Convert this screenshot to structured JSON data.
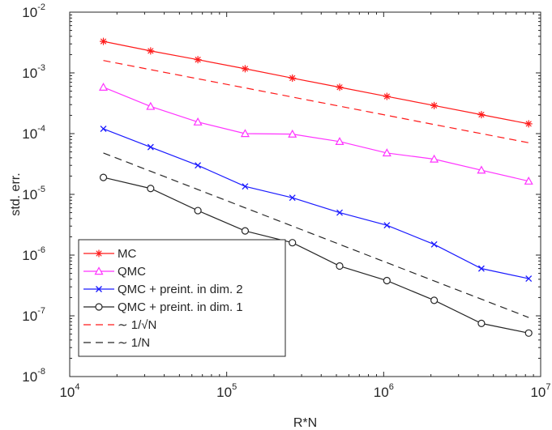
{
  "chart_data": {
    "type": "line",
    "xscale": "log",
    "yscale": "log",
    "xlabel": "R*N",
    "ylabel": "std. err.",
    "xlim": [
      10000,
      10000000
    ],
    "ylim": [
      1e-08,
      0.01
    ],
    "x_ticks": [
      {
        "value": 10000,
        "base": "10",
        "exp": "4"
      },
      {
        "value": 100000,
        "base": "10",
        "exp": "5"
      },
      {
        "value": 1000000,
        "base": "10",
        "exp": "6"
      },
      {
        "value": 10000000,
        "base": "10",
        "exp": "7"
      }
    ],
    "y_ticks": [
      {
        "value": 1e-08,
        "base": "10",
        "exp": "-8"
      },
      {
        "value": 1e-07,
        "base": "10",
        "exp": "-7"
      },
      {
        "value": 1e-06,
        "base": "10",
        "exp": "-6"
      },
      {
        "value": 1e-05,
        "base": "10",
        "exp": "-5"
      },
      {
        "value": 0.0001,
        "base": "10",
        "exp": "-4"
      },
      {
        "value": 0.001,
        "base": "10",
        "exp": "-3"
      },
      {
        "value": 0.01,
        "base": "10",
        "exp": "-2"
      }
    ],
    "grid": false,
    "legend_position": "bottom-left",
    "x": [
      16384,
      32768,
      65536,
      131072,
      262144,
      524288,
      1048576,
      2097152,
      4194304,
      8388608
    ],
    "series": [
      {
        "name": "MC",
        "color": "#ff1a1a",
        "marker": "asterisk",
        "line": "solid",
        "values": [
          0.0033,
          0.0023,
          0.00165,
          0.00117,
          0.00082,
          0.00058,
          0.00041,
          0.00029,
          0.000205,
          0.000145
        ]
      },
      {
        "name": "QMC",
        "color": "#ff33ff",
        "marker": "triangle",
        "line": "solid",
        "values": [
          0.00058,
          0.00028,
          0.000155,
          0.0001,
          9.8e-05,
          7.4e-05,
          4.8e-05,
          3.8e-05,
          2.5e-05,
          1.65e-05
        ]
      },
      {
        "name": "QMC + preint. in dim. 2",
        "color": "#1a1aff",
        "marker": "x",
        "line": "solid",
        "values": [
          0.00012,
          6e-05,
          3e-05,
          1.35e-05,
          8.8e-06,
          5e-06,
          3.1e-06,
          1.5e-06,
          6e-07,
          4.1e-07
        ]
      },
      {
        "name": "QMC + preint. in dim. 1",
        "color": "#262626",
        "marker": "circle",
        "line": "solid",
        "values": [
          1.9e-05,
          1.25e-05,
          5.4e-06,
          2.5e-06,
          1.6e-06,
          6.6e-07,
          3.8e-07,
          1.8e-07,
          7.5e-08,
          5.2e-08
        ]
      },
      {
        "name": "~ 1/√N",
        "color": "#ff1a1a",
        "marker": "none",
        "line": "dashed",
        "values": [
          0.0016,
          0.00113,
          0.0008,
          0.000566,
          0.0004,
          0.000283,
          0.0002,
          0.000141,
          0.0001,
          7.07e-05
        ]
      },
      {
        "name": "~ 1/N",
        "color": "#262626",
        "marker": "none",
        "line": "dashed",
        "values": [
          4.8e-05,
          2.4e-05,
          1.2e-05,
          6e-06,
          3e-06,
          1.5e-06,
          7.5e-07,
          3.75e-07,
          1.88e-07,
          9.4e-08
        ]
      }
    ],
    "legend": [
      {
        "prefix": "",
        "label": "MC"
      },
      {
        "prefix": "",
        "label": "QMC"
      },
      {
        "prefix": "",
        "label": "QMC + preint. in dim. 2"
      },
      {
        "prefix": "",
        "label": "QMC + preint. in dim. 1"
      },
      {
        "prefix": "∼",
        "label": "1/√N"
      },
      {
        "prefix": "∼",
        "label": "1/N"
      }
    ]
  }
}
